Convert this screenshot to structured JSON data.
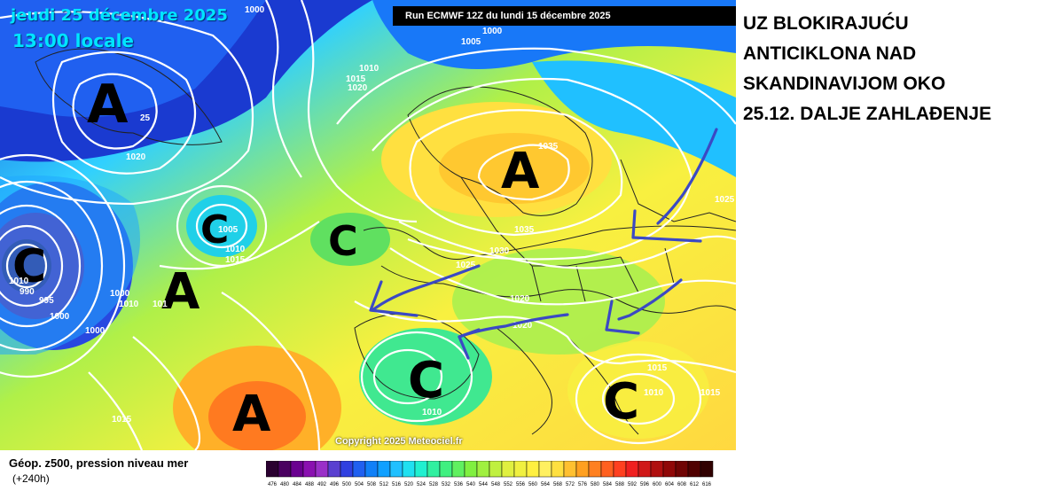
{
  "map": {
    "date_line": "jeudi 25 décembre 2025",
    "time_line": "13:00 locale",
    "run_info": "Run ECMWF 12Z du lundi 15 décembre 2025",
    "copyright": "Copyright 2025 Meteociel.fr",
    "systems": [
      "A",
      "A",
      "A",
      "A",
      "C",
      "C",
      "C",
      "C",
      "C"
    ],
    "isobar_labels": [
      "1000",
      "1000",
      "1005",
      "1010",
      "1015",
      "1020",
      "25",
      "1020",
      "1005",
      "1010",
      "1015",
      "1000",
      "1010",
      "1000",
      "990",
      "995",
      "1000",
      "1035",
      "1035",
      "1030",
      "1025",
      "1020",
      "1020",
      "1025",
      "1015",
      "1010",
      "1015",
      "1010",
      "1015",
      "1010",
      "101"
    ],
    "colors": {
      "arrow": "#3b49c4",
      "isobar": "#ffffff",
      "border": "#222222"
    }
  },
  "annotation": {
    "lines": [
      "UZ BLOKIRAJUĆU",
      "ANTICIKLONA NAD",
      "SKANDINAVIJOM OKO",
      "25.12. DALJE ZAHLAĐENJE"
    ]
  },
  "legend": {
    "title": "Géop. z500, pression niveau mer",
    "subtitle": "(+240h)",
    "scale_values": [
      "476",
      "480",
      "484",
      "488",
      "492",
      "496",
      "500",
      "504",
      "508",
      "512",
      "516",
      "520",
      "524",
      "528",
      "532",
      "536",
      "540",
      "544",
      "548",
      "552",
      "556",
      "560",
      "564",
      "568",
      "572",
      "576",
      "580",
      "584",
      "588",
      "592",
      "596",
      "600",
      "604",
      "608",
      "612",
      "616"
    ],
    "scale_colors": [
      "#2a0030",
      "#4a0060",
      "#6a0090",
      "#8a10b0",
      "#9a30c8",
      "#5a40d0",
      "#3040e0",
      "#2060f0",
      "#1080f8",
      "#10a0ff",
      "#20c0ff",
      "#20e0f0",
      "#20f0d0",
      "#30f0a0",
      "#40f080",
      "#60f060",
      "#80f040",
      "#a0f040",
      "#c0f040",
      "#e0f040",
      "#f0f040",
      "#fff040",
      "#fff060",
      "#ffe040",
      "#ffc030",
      "#ffa020",
      "#ff8020",
      "#ff6020",
      "#ff4020",
      "#f02020",
      "#d01818",
      "#b01010",
      "#900808",
      "#700404",
      "#500000",
      "#300000"
    ]
  }
}
